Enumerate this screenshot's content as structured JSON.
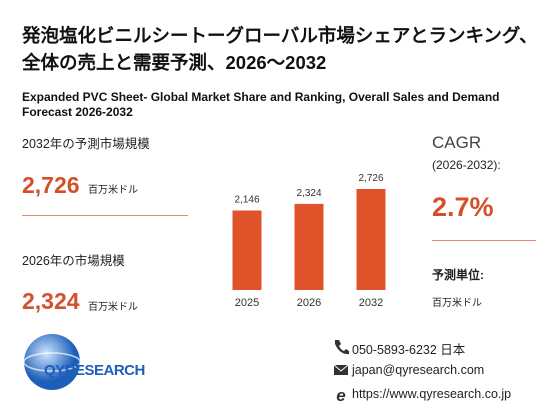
{
  "header": {
    "title": "発泡塩化ビニルシートーグローバル市場シェアとランキング、全体の売上と需要予測、2026～2032",
    "subtitle": "Expanded PVC Sheet- Global Market Share and Ranking, Overall Sales and Demand Forecast 2026-2032"
  },
  "forecast": {
    "label": "2032年の予測市場規模",
    "value": "2,726",
    "unit": "百万米ドル"
  },
  "current": {
    "label": "2026年の市場規模",
    "value": "2,324",
    "unit": "百万米ドル"
  },
  "chart_data": {
    "type": "bar",
    "categories": [
      "2025",
      "2026",
      "2032"
    ],
    "values": [
      2146,
      2324,
      2726
    ],
    "value_labels": [
      "2,146",
      "2,324",
      "2,726"
    ],
    "color": "#e0522a"
  },
  "cagr": {
    "title": "CAGR",
    "period": "(2026-2032):",
    "value": "2.7%",
    "unit_label": "予測単位:",
    "unit": "百万米ドル"
  },
  "logo": {
    "text": "QYRESEARCH"
  },
  "contact": {
    "phone": "050-5893-6232 日本",
    "email": "japan@qyresearch.com",
    "web": "https://www.qyresearch.co.jp"
  }
}
